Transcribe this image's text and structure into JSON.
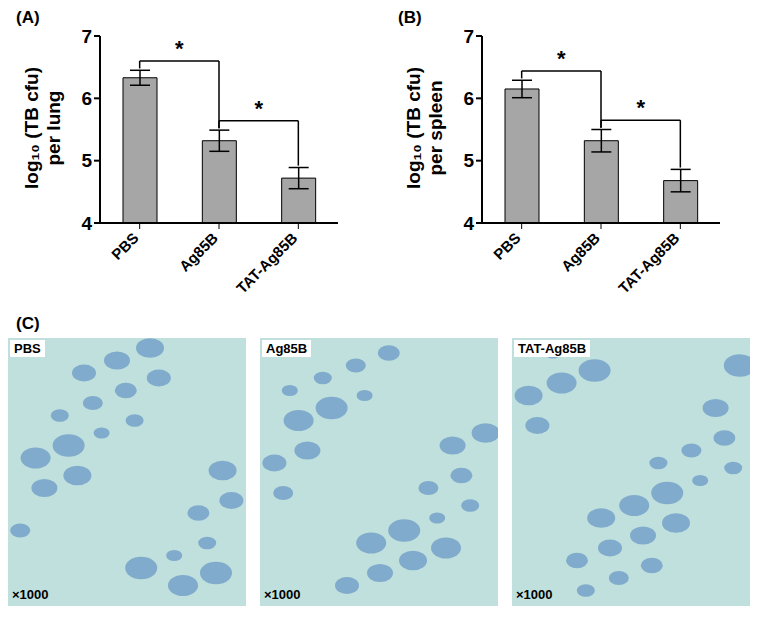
{
  "chart_data": [
    {
      "type": "bar",
      "title": "(A)",
      "y_label": "log₁₀ (TB cfu) per lung",
      "categories": [
        "PBS",
        "Ag85B",
        "TAT-Ag85B"
      ],
      "values": [
        6.33,
        5.32,
        4.72
      ],
      "errors": [
        0.12,
        0.17,
        0.17
      ],
      "color": "#a6a6a6",
      "ylim": [
        4,
        7
      ],
      "yticks": [
        4,
        5,
        6,
        7
      ],
      "grid": false,
      "annotations": [
        {
          "from": "PBS",
          "to": "Ag85B",
          "text": "*"
        },
        {
          "from": "Ag85B",
          "to": "TAT-Ag85B",
          "text": "*"
        }
      ]
    },
    {
      "type": "bar",
      "title": "(B)",
      "y_label": "log₁₀ (TB cfu) per spleen",
      "categories": [
        "PBS",
        "Ag85B",
        "TAT-Ag85B"
      ],
      "values": [
        6.15,
        5.32,
        4.68
      ],
      "errors": [
        0.14,
        0.18,
        0.18
      ],
      "color": "#a6a6a6",
      "ylim": [
        4,
        7
      ],
      "yticks": [
        4,
        5,
        6,
        7
      ],
      "grid": false,
      "annotations": [
        {
          "from": "PBS",
          "to": "Ag85B",
          "text": "*"
        },
        {
          "from": "Ag85B",
          "to": "TAT-Ag85B",
          "text": "*"
        }
      ]
    }
  ],
  "micrographs": {
    "label": "(C)",
    "images": [
      {
        "name": "PBS",
        "magnification": "×1000"
      },
      {
        "name": "Ag85B",
        "magnification": "×1000"
      },
      {
        "name": "TAT-Ag85B",
        "magnification": "×1000"
      }
    ]
  }
}
